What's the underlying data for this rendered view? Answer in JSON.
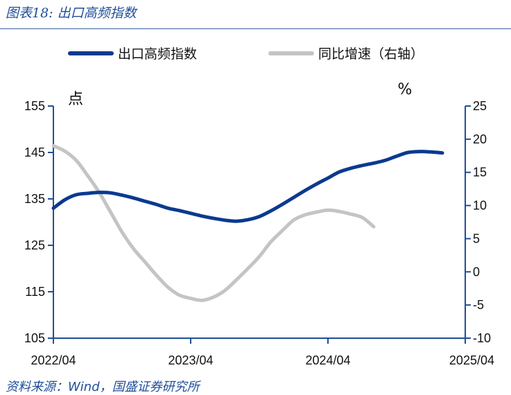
{
  "figure": {
    "title": "图表18:  出口高频指数",
    "source": "资料来源：Wind，国盛证券研究所"
  },
  "chart_data": {
    "type": "line",
    "x_ticks": [
      "2022/04",
      "2023/04",
      "2024/04",
      "2025/04"
    ],
    "left_axis": {
      "unit": "点",
      "ylim": [
        105,
        155
      ],
      "ticks": [
        105,
        115,
        125,
        135,
        145,
        155
      ]
    },
    "right_axis": {
      "unit": "%",
      "ylim": [
        -10,
        25
      ],
      "ticks": [
        -10,
        -5,
        0,
        5,
        10,
        15,
        20,
        25
      ]
    },
    "legend_position": "top",
    "grid": false,
    "series": [
      {
        "name": "出口高频指数",
        "axis": "left",
        "color": "#0a3a8f",
        "points": [
          [
            "2022/04",
            133.0
          ],
          [
            "2022/05",
            134.8
          ],
          [
            "2022/06",
            135.9
          ],
          [
            "2022/07",
            136.2
          ],
          [
            "2022/08",
            136.4
          ],
          [
            "2022/09",
            136.3
          ],
          [
            "2022/10",
            135.8
          ],
          [
            "2022/11",
            135.2
          ],
          [
            "2022/12",
            134.5
          ],
          [
            "2023/01",
            133.8
          ],
          [
            "2023/02",
            133.0
          ],
          [
            "2023/03",
            132.5
          ],
          [
            "2023/04",
            131.9
          ],
          [
            "2023/05",
            131.3
          ],
          [
            "2023/06",
            130.8
          ],
          [
            "2023/07",
            130.4
          ],
          [
            "2023/08",
            130.2
          ],
          [
            "2023/09",
            130.5
          ],
          [
            "2023/10",
            131.2
          ],
          [
            "2023/11",
            132.4
          ],
          [
            "2023/12",
            133.8
          ],
          [
            "2024/01",
            135.3
          ],
          [
            "2024/02",
            136.8
          ],
          [
            "2024/03",
            138.2
          ],
          [
            "2024/04",
            139.5
          ],
          [
            "2024/05",
            140.8
          ],
          [
            "2024/06",
            141.6
          ],
          [
            "2024/07",
            142.2
          ],
          [
            "2024/08",
            142.7
          ],
          [
            "2024/09",
            143.3
          ],
          [
            "2024/10",
            144.2
          ],
          [
            "2024/11",
            145.0
          ],
          [
            "2024/12",
            145.2
          ],
          [
            "2025/01",
            145.1
          ],
          [
            "2025/02",
            144.9
          ]
        ]
      },
      {
        "name": "同比增速（右轴）",
        "axis": "right",
        "color": "#c4c4c4",
        "points": [
          [
            "2022/04",
            19.0
          ],
          [
            "2022/05",
            18.2
          ],
          [
            "2022/06",
            16.8
          ],
          [
            "2022/07",
            14.5
          ],
          [
            "2022/08",
            12.0
          ],
          [
            "2022/09",
            9.0
          ],
          [
            "2022/10",
            6.0
          ],
          [
            "2022/11",
            3.5
          ],
          [
            "2022/12",
            1.5
          ],
          [
            "2023/01",
            -0.5
          ],
          [
            "2023/02",
            -2.3
          ],
          [
            "2023/03",
            -3.5
          ],
          [
            "2023/04",
            -4.0
          ],
          [
            "2023/05",
            -4.3
          ],
          [
            "2023/06",
            -3.8
          ],
          [
            "2023/07",
            -2.8
          ],
          [
            "2023/08",
            -1.2
          ],
          [
            "2023/09",
            0.5
          ],
          [
            "2023/10",
            2.3
          ],
          [
            "2023/11",
            4.5
          ],
          [
            "2023/12",
            6.2
          ],
          [
            "2024/01",
            7.8
          ],
          [
            "2024/02",
            8.6
          ],
          [
            "2024/03",
            9.0
          ],
          [
            "2024/04",
            9.3
          ],
          [
            "2024/05",
            9.1
          ],
          [
            "2024/06",
            8.7
          ],
          [
            "2024/07",
            8.2
          ],
          [
            "2024/08",
            6.8
          ]
        ]
      }
    ]
  }
}
